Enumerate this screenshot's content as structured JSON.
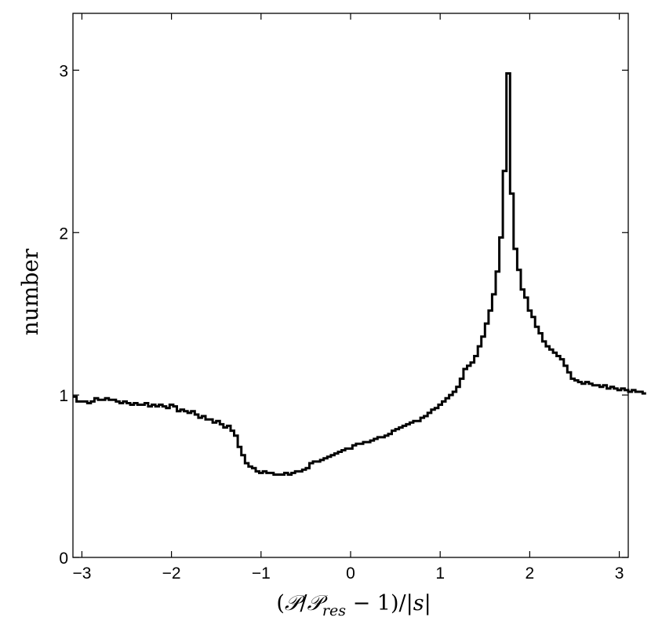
{
  "chart_data": {
    "type": "line",
    "style": "step histogram",
    "title": "",
    "xlabel_parts": [
      "(",
      "𝒫",
      "/",
      "𝒫",
      "res",
      " − 1)/|",
      "s",
      "|"
    ],
    "ylabel": "number",
    "xlim": [
      -3.1,
      3.1
    ],
    "ylim": [
      0,
      3.35
    ],
    "xticks": [
      -3,
      -2,
      -1,
      0,
      1,
      2,
      3
    ],
    "xtick_labels": [
      "−3",
      "−2",
      "−1",
      "0",
      "1",
      "2",
      "3"
    ],
    "yticks": [
      0,
      1,
      2,
      3
    ],
    "ytick_labels": [
      "0",
      "1",
      "2",
      "3"
    ],
    "grid": false,
    "legend": "none",
    "line_color": "#000000",
    "bin_width": 0.04,
    "bin_start": -3.1,
    "series": [
      {
        "values": [
          0.99,
          0.96,
          0.96,
          0.96,
          0.95,
          0.96,
          0.98,
          0.97,
          0.97,
          0.98,
          0.97,
          0.97,
          0.96,
          0.95,
          0.96,
          0.95,
          0.94,
          0.95,
          0.94,
          0.94,
          0.95,
          0.93,
          0.94,
          0.93,
          0.94,
          0.93,
          0.92,
          0.94,
          0.93,
          0.9,
          0.91,
          0.9,
          0.89,
          0.9,
          0.88,
          0.86,
          0.87,
          0.85,
          0.85,
          0.83,
          0.84,
          0.82,
          0.8,
          0.81,
          0.78,
          0.75,
          0.68,
          0.63,
          0.58,
          0.56,
          0.55,
          0.53,
          0.52,
          0.53,
          0.52,
          0.52,
          0.51,
          0.51,
          0.51,
          0.52,
          0.51,
          0.52,
          0.53,
          0.53,
          0.54,
          0.55,
          0.58,
          0.59,
          0.59,
          0.6,
          0.61,
          0.62,
          0.63,
          0.64,
          0.65,
          0.66,
          0.67,
          0.67,
          0.69,
          0.7,
          0.7,
          0.71,
          0.71,
          0.72,
          0.73,
          0.74,
          0.74,
          0.75,
          0.76,
          0.78,
          0.79,
          0.8,
          0.81,
          0.82,
          0.83,
          0.84,
          0.84,
          0.86,
          0.87,
          0.89,
          0.91,
          0.92,
          0.94,
          0.96,
          0.98,
          1.0,
          1.02,
          1.05,
          1.1,
          1.16,
          1.18,
          1.2,
          1.24,
          1.3,
          1.36,
          1.44,
          1.52,
          1.62,
          1.76,
          1.97,
          2.38,
          2.98,
          2.24,
          1.9,
          1.77,
          1.65,
          1.6,
          1.52,
          1.48,
          1.42,
          1.38,
          1.33,
          1.3,
          1.28,
          1.26,
          1.24,
          1.22,
          1.18,
          1.14,
          1.1,
          1.09,
          1.08,
          1.07,
          1.08,
          1.07,
          1.06,
          1.06,
          1.05,
          1.06,
          1.04,
          1.05,
          1.04,
          1.03,
          1.04,
          1.03,
          1.02,
          1.03,
          1.02,
          1.02,
          1.01
        ]
      }
    ]
  }
}
